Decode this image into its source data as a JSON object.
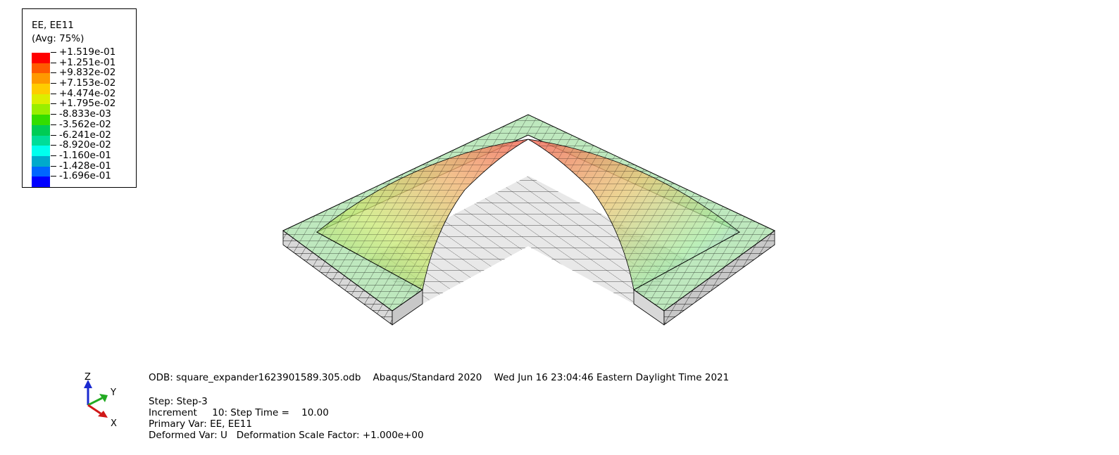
{
  "legend": {
    "title_line1": "EE, EE11",
    "title_line2": "(Avg: 75%)",
    "values": [
      "+1.519e-01",
      "+1.251e-01",
      "+9.832e-02",
      "+7.153e-02",
      "+4.474e-02",
      "+1.795e-02",
      "-8.833e-03",
      "-3.562e-02",
      "-6.241e-02",
      "-8.920e-02",
      "-1.160e-01",
      "-1.428e-01",
      "-1.696e-01"
    ],
    "colors": [
      "#ff0000",
      "#ff5a00",
      "#ff9900",
      "#ffcc00",
      "#ddee00",
      "#99ee00",
      "#33dd00",
      "#00cc55",
      "#00dd99",
      "#00ffee",
      "#00aacc",
      "#0066ff",
      "#0000ff"
    ]
  },
  "triad": {
    "z_label": "Z",
    "y_label": "Y",
    "x_label": "X"
  },
  "info": {
    "odb_line": "ODB: square_expander1623901589.305.odb    Abaqus/Standard 2020    Wed Jun 16 23:04:46 Eastern Daylight Time 2021",
    "step_line": "Step: Step-3",
    "increment_line": "Increment     10: Step Time =    10.00",
    "primary_line": "Primary Var: EE, EE11",
    "deformed_line": "Deformed Var: U   Deformation Scale Factor: +1.000e+00"
  }
}
